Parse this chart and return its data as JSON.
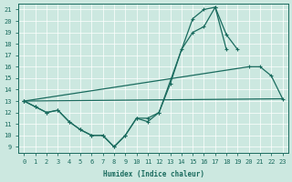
{
  "xlabel": "Humidex (Indice chaleur)",
  "background_color": "#cce8e0",
  "line_color": "#1a6b5e",
  "xlim": [
    -0.5,
    23.5
  ],
  "ylim": [
    8.5,
    21.5
  ],
  "xticks": [
    0,
    1,
    2,
    3,
    4,
    5,
    6,
    7,
    8,
    9,
    10,
    11,
    12,
    13,
    14,
    15,
    16,
    17,
    18,
    19,
    20,
    21,
    22,
    23
  ],
  "yticks": [
    9,
    10,
    11,
    12,
    13,
    14,
    15,
    16,
    17,
    18,
    19,
    20,
    21
  ],
  "lines": [
    {
      "x": [
        0,
        1,
        2,
        3,
        4,
        5,
        6,
        7,
        8,
        9,
        10,
        11,
        12,
        13,
        14,
        15,
        16,
        17,
        18
      ],
      "y": [
        13.0,
        12.5,
        12.0,
        12.2,
        11.2,
        10.5,
        10.0,
        10.0,
        9.0,
        10.0,
        11.5,
        11.2,
        12.0,
        14.5,
        17.5,
        19.0,
        19.5,
        21.2,
        17.5
      ],
      "marker": true
    },
    {
      "x": [
        0,
        1,
        2,
        3,
        4,
        5,
        6,
        7,
        8,
        9,
        10,
        11,
        12,
        15,
        16,
        17,
        18,
        19
      ],
      "y": [
        13.0,
        12.5,
        12.0,
        12.2,
        11.2,
        10.5,
        10.0,
        10.0,
        9.0,
        10.0,
        11.5,
        11.5,
        12.0,
        20.2,
        21.0,
        21.2,
        18.8,
        17.5
      ],
      "marker": true
    },
    {
      "x": [
        0,
        20,
        21,
        22,
        23
      ],
      "y": [
        13.0,
        16.0,
        16.0,
        15.2,
        13.2
      ],
      "marker": true
    },
    {
      "x": [
        0,
        23
      ],
      "y": [
        13.0,
        13.2
      ],
      "marker": false
    }
  ],
  "markersize": 2.5
}
